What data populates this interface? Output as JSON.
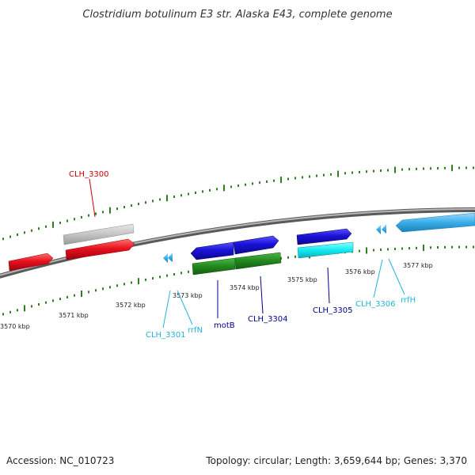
{
  "title": "Clostridium botulinum E3 str. Alaska E43, complete genome",
  "footer": {
    "accession": "Accession: NC_010723",
    "summary": "Topology: circular; Length: 3,659,644 bp; Genes: 3,370"
  },
  "scale_labels": [
    "3570 kbp",
    "3571 kbp",
    "3572 kbp",
    "3573 kbp",
    "3574 kbp",
    "3575 kbp",
    "3576 kbp",
    "3577 kbp"
  ],
  "gene_labels": {
    "clh_3300": "CLH_3300",
    "clh_3301": "CLH_3301",
    "rrfn": "rrfN",
    "motb": "motB",
    "clh_3304": "CLH_3304",
    "clh_3305": "CLH_3305",
    "clh_3306": "CLH_3306",
    "rrfh": "rrfH"
  },
  "colors": {
    "backbone": "#888888",
    "tick": "#2e7d1f",
    "red_gene": "#e8121e",
    "gray_gene": "#c4c4c4",
    "blue_gene": "#1a12d8",
    "green_gene": "#22881e",
    "cyan_gene": "#12eaf0",
    "rna_gene": "#3aaee8",
    "label_red": "#cc0000",
    "label_blue": "#00008b",
    "label_cyan": "#22b3d8"
  },
  "icons": {
    "backbone": "genome-backbone-line",
    "arrow": "gene-arrow-shape"
  }
}
